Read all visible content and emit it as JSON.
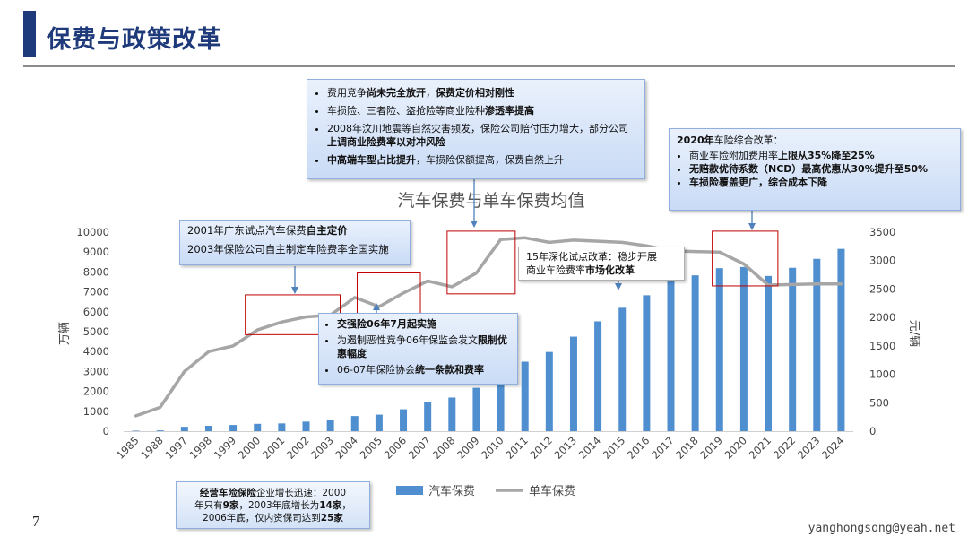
{
  "page": {
    "title": "保费与政策改革",
    "page_number": "7",
    "email": "yanghongsong@yeah.net"
  },
  "colors": {
    "bar": "#4f8fcf",
    "line": "#a6a6a6",
    "title_accent": "#1f3a7a",
    "highlight_box": "#c00000"
  },
  "chart_data": {
    "type": "bar",
    "title": "汽车保费与单车保费均值",
    "categories": [
      "1985",
      "1988",
      "1997",
      "1998",
      "1999",
      "2000",
      "2001",
      "2002",
      "2003",
      "2004",
      "2005",
      "2006",
      "2007",
      "2008",
      "2009",
      "2010",
      "2011",
      "2012",
      "2013",
      "2014",
      "2015",
      "2016",
      "2017",
      "2018",
      "2019",
      "2020",
      "2021",
      "2022",
      "2023",
      "2024"
    ],
    "series": [
      {
        "name": "汽车保费",
        "axis": "left",
        "type": "bar",
        "values": [
          25,
          40,
          220,
          270,
          310,
          370,
          390,
          480,
          540,
          760,
          830,
          1100,
          1460,
          1690,
          2180,
          2770,
          3490,
          3980,
          4750,
          5520,
          6200,
          6830,
          7520,
          7830,
          8190,
          8250,
          7800,
          8210,
          8660,
          9160
        ]
      },
      {
        "name": "单车保费",
        "axis": "right",
        "type": "line",
        "values": [
          270,
          420,
          1050,
          1400,
          1500,
          1780,
          1920,
          2010,
          2040,
          2350,
          2190,
          2430,
          2640,
          2540,
          2780,
          3370,
          3400,
          3320,
          3360,
          3340,
          3320,
          3260,
          3170,
          3160,
          3150,
          2940,
          2570,
          2580,
          2590,
          2590
        ]
      }
    ],
    "ylabel": "万辆",
    "y2label": "元/辆",
    "ylim": [
      0,
      10000
    ],
    "y2lim": [
      0,
      3500
    ],
    "yticks": [
      "0",
      "1000",
      "2000",
      "3000",
      "4000",
      "5000",
      "6000",
      "7000",
      "8000",
      "9000",
      "10000"
    ],
    "y2ticks": [
      "0",
      "500",
      "1000",
      "1500",
      "2000",
      "2500",
      "3000",
      "3500"
    ],
    "grid": false,
    "legend": "bottom",
    "highlight_boxes": [
      {
        "from_index": 5.0,
        "to_index": 8.9,
        "y_top": 6850,
        "y_bottom": 4850
      },
      {
        "from_index": 9.6,
        "to_index": 12.2,
        "y_top": 7950,
        "y_bottom": 5920
      },
      {
        "from_index": 13.3,
        "to_index": 16.1,
        "y_top": 10050,
        "y_bottom": 6900
      },
      {
        "from_index": 24.2,
        "to_index": 26.9,
        "y_top": 10050,
        "y_bottom": 7300
      }
    ]
  },
  "callouts": {
    "top": {
      "items": [
        {
          "pre": "费用竞争",
          "bold": "尚未完全放开",
          "mid": "，",
          "bold2": "保费定价相对刚性",
          "post": ""
        },
        {
          "pre": "车损险、三者险、盗抢险等商业险种",
          "bold": "渗透率提高",
          "mid": "",
          "bold2": "",
          "post": ""
        },
        {
          "pre": "2008年汶川地震等自然灾害频发，保险公司赔付压力增大，部分公司",
          "bold": "上调商业险费率以对冲风险",
          "mid": "",
          "bold2": "",
          "post": ""
        },
        {
          "pre": "",
          "bold": "中高端车型占比提升",
          "mid": "，车损险保额提高，保费自然上升",
          "bold2": "",
          "post": ""
        }
      ]
    },
    "reform2020": {
      "heading_bold": "2020年",
      "heading_rest": "车险综合改革：",
      "items": [
        {
          "pre": "商业车险附加费用率",
          "bold": "上限从35%降至25%",
          "post": ""
        },
        {
          "pre": "",
          "bold": "无赔款优待系数（NCD）最高优惠从30%提升至50%",
          "post": ""
        },
        {
          "pre": "",
          "bold": "车损险覆盖更广，综合成本下降",
          "post": ""
        }
      ]
    },
    "guangdong2001": {
      "line1_pre": "2001年广东试点汽车保费",
      "line1_bold": "自主定价",
      "line2": "2003年保险公司自主制定车险费率全国实施"
    },
    "reform2015": {
      "line1": "15年深化试点改革：稳步开展",
      "line2_pre": "商业车险费率",
      "line2_bold": "市场化改革"
    },
    "compulsory2006": {
      "items": [
        {
          "pre": "",
          "bold": "交强险06年7月起实施",
          "post": ""
        },
        {
          "pre": "为遏制恶性竞争06年保监会发文",
          "bold": "限制优惠幅度",
          "post": ""
        },
        {
          "pre": "06-07年保险协会",
          "bold": "统一条款和费率",
          "post": ""
        }
      ]
    },
    "companies": {
      "l1_bold": "经营车险保险",
      "l1_rest": "企业增长迅速：2000",
      "l2_pre": "年只有",
      "l2_bold": "9家",
      "l2_mid": "，2003年底增长为",
      "l2_bold2": "14家",
      "l2_post": "，",
      "l3_pre": "2006年底，仅内资保司达到",
      "l3_bold": "25家"
    }
  }
}
